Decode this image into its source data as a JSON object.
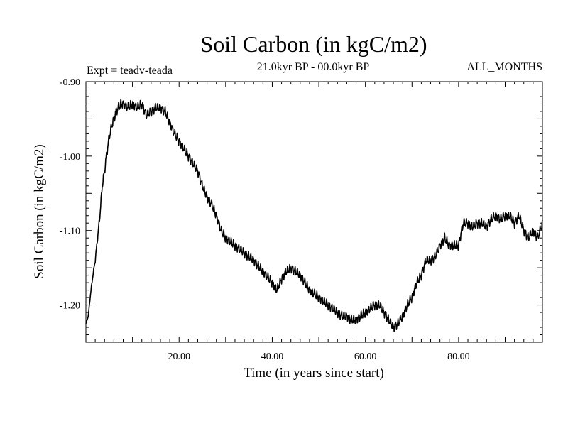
{
  "chart_data": {
    "type": "line",
    "title": "Soil Carbon (in kgC/m2)",
    "subtitle": "21.0kyr BP - 00.0kyr BP",
    "experiment_label": "Expt = teadv-teada",
    "months_label": "ALL_MONTHS",
    "xlabel": "Time (in years since start)",
    "ylabel": "Soil Carbon (in kgC/m2)",
    "xlim": [
      0,
      98
    ],
    "ylim": [
      -1.25,
      -0.9
    ],
    "xticks": [
      {
        "value": 20,
        "label": "20.00"
      },
      {
        "value": 40,
        "label": "40.00"
      },
      {
        "value": 60,
        "label": "60.00"
      },
      {
        "value": 80,
        "label": "80.00"
      }
    ],
    "yticks": [
      {
        "value": -0.9,
        "label": "-0.90"
      },
      {
        "value": -1.0,
        "label": "-1.00"
      },
      {
        "value": -1.1,
        "label": "-1.10"
      },
      {
        "value": -1.2,
        "label": "-1.20"
      }
    ],
    "series": [
      {
        "name": "Soil Carbon",
        "color": "#000000",
        "x": [
          0,
          0.5,
          1,
          1.5,
          2,
          2.5,
          3,
          3.5,
          4,
          4.5,
          5,
          5.5,
          6,
          6.5,
          7,
          7.5,
          8,
          9,
          10,
          11,
          12,
          13,
          14,
          15,
          16,
          17,
          18,
          19,
          20,
          21,
          22,
          23,
          24,
          25,
          26,
          27,
          28,
          29,
          30,
          32,
          34,
          36,
          38,
          40,
          41,
          42,
          43,
          44,
          45,
          46,
          47,
          48,
          50,
          52,
          54,
          55,
          56,
          57,
          58,
          59,
          60,
          61,
          62,
          63,
          64,
          65,
          66,
          67,
          68,
          69,
          70,
          71,
          72,
          73,
          74,
          75,
          76,
          77,
          78,
          79,
          80,
          81,
          82,
          83,
          84,
          85,
          86,
          87,
          88,
          89,
          90,
          91,
          92,
          93,
          94,
          95,
          96,
          97,
          98
        ],
        "values": [
          -1.225,
          -1.215,
          -1.185,
          -1.16,
          -1.14,
          -1.11,
          -1.08,
          -1.04,
          -1.02,
          -0.995,
          -0.975,
          -0.96,
          -0.95,
          -0.94,
          -0.935,
          -0.93,
          -0.93,
          -0.935,
          -0.93,
          -0.935,
          -0.93,
          -0.945,
          -0.94,
          -0.935,
          -0.935,
          -0.94,
          -0.955,
          -0.97,
          -0.98,
          -0.99,
          -1.0,
          -1.01,
          -1.02,
          -1.04,
          -1.055,
          -1.065,
          -1.08,
          -1.1,
          -1.11,
          -1.12,
          -1.13,
          -1.14,
          -1.155,
          -1.17,
          -1.18,
          -1.165,
          -1.155,
          -1.15,
          -1.155,
          -1.16,
          -1.17,
          -1.18,
          -1.19,
          -1.2,
          -1.21,
          -1.215,
          -1.215,
          -1.22,
          -1.22,
          -1.215,
          -1.21,
          -1.205,
          -1.2,
          -1.2,
          -1.21,
          -1.22,
          -1.23,
          -1.225,
          -1.215,
          -1.2,
          -1.19,
          -1.17,
          -1.16,
          -1.14,
          -1.14,
          -1.135,
          -1.12,
          -1.11,
          -1.12,
          -1.12,
          -1.12,
          -1.09,
          -1.09,
          -1.095,
          -1.09,
          -1.09,
          -1.095,
          -1.085,
          -1.08,
          -1.085,
          -1.08,
          -1.08,
          -1.09,
          -1.08,
          -1.1,
          -1.11,
          -1.1,
          -1.11,
          -1.09
        ]
      }
    ]
  }
}
